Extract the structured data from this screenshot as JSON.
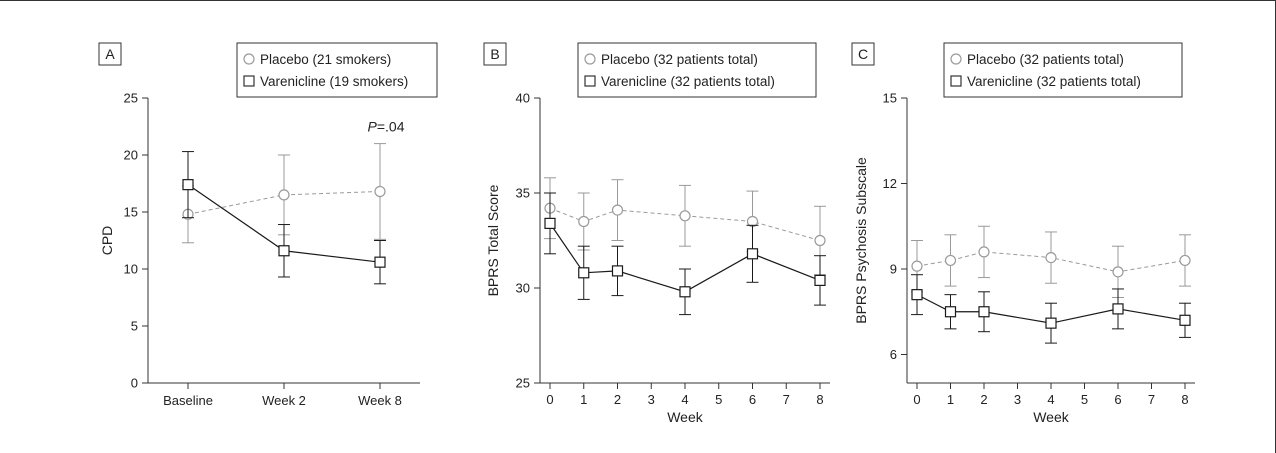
{
  "colors": {
    "placebo": "#9a9a9a",
    "varenicline": "#1a1a1a",
    "frame": "#333333"
  },
  "chart_data": [
    {
      "type": "line",
      "panel": "A",
      "categories": [
        "Baseline",
        "Week 2",
        "Week 8"
      ],
      "ylabel": "CPD",
      "xlabel": "",
      "ylim": [
        0,
        25
      ],
      "yticks": [
        0,
        5,
        10,
        15,
        20,
        25
      ],
      "legend": "top-right",
      "annotation": {
        "prefix": "P",
        "suffix": "=.04",
        "x": "Week 8",
        "y": 22.5
      },
      "series": [
        {
          "name": "Placebo (21 smokers)",
          "marker": "circle",
          "color": "#9a9a9a",
          "dashed": true,
          "values": [
            14.8,
            16.5,
            16.8
          ],
          "err": [
            2.5,
            3.5,
            4.2
          ]
        },
        {
          "name": "Varenicline (19 smokers)",
          "marker": "square",
          "color": "#1a1a1a",
          "dashed": false,
          "values": [
            17.4,
            11.6,
            10.6
          ],
          "err": [
            2.9,
            2.3,
            1.9
          ]
        }
      ]
    },
    {
      "type": "line",
      "panel": "B",
      "x": [
        0,
        1,
        2,
        4,
        6,
        8
      ],
      "xticks": [
        0,
        1,
        2,
        3,
        4,
        5,
        6,
        7,
        8
      ],
      "xlim": [
        0,
        8
      ],
      "xlabel": "Week",
      "ylabel": "BPRS Total Score",
      "ylim": [
        25,
        40
      ],
      "yticks": [
        25,
        30,
        35,
        40
      ],
      "legend": "top-right",
      "series": [
        {
          "name": "Placebo (32 patients total)",
          "marker": "circle",
          "color": "#9a9a9a",
          "dashed": true,
          "values": [
            34.2,
            33.5,
            34.1,
            33.8,
            33.5,
            32.5
          ],
          "err": [
            1.6,
            1.5,
            1.6,
            1.6,
            1.6,
            1.8
          ]
        },
        {
          "name": "Varenicline (32 patients total)",
          "marker": "square",
          "color": "#1a1a1a",
          "dashed": false,
          "values": [
            33.4,
            30.8,
            30.9,
            29.8,
            31.8,
            30.4
          ],
          "err": [
            1.6,
            1.4,
            1.3,
            1.2,
            1.5,
            1.3
          ]
        }
      ]
    },
    {
      "type": "line",
      "panel": "C",
      "x": [
        0,
        1,
        2,
        4,
        6,
        8
      ],
      "xticks": [
        0,
        1,
        2,
        3,
        4,
        5,
        6,
        7,
        8
      ],
      "xlim": [
        0,
        8
      ],
      "xlabel": "Week",
      "ylabel": "BPRS Psychosis Subscale",
      "ylim": [
        5,
        15
      ],
      "yticks": [
        6,
        9,
        12,
        15
      ],
      "legend": "top-right",
      "series": [
        {
          "name": "Placebo (32 patients total)",
          "marker": "circle",
          "color": "#9a9a9a",
          "dashed": true,
          "values": [
            9.1,
            9.3,
            9.6,
            9.4,
            8.9,
            9.3
          ],
          "err": [
            0.9,
            0.9,
            0.9,
            0.9,
            0.9,
            0.9
          ]
        },
        {
          "name": "Varenicline (32 patients total)",
          "marker": "square",
          "color": "#1a1a1a",
          "dashed": false,
          "values": [
            8.1,
            7.5,
            7.5,
            7.1,
            7.6,
            7.2
          ],
          "err": [
            0.7,
            0.6,
            0.7,
            0.7,
            0.7,
            0.6
          ]
        }
      ]
    }
  ]
}
